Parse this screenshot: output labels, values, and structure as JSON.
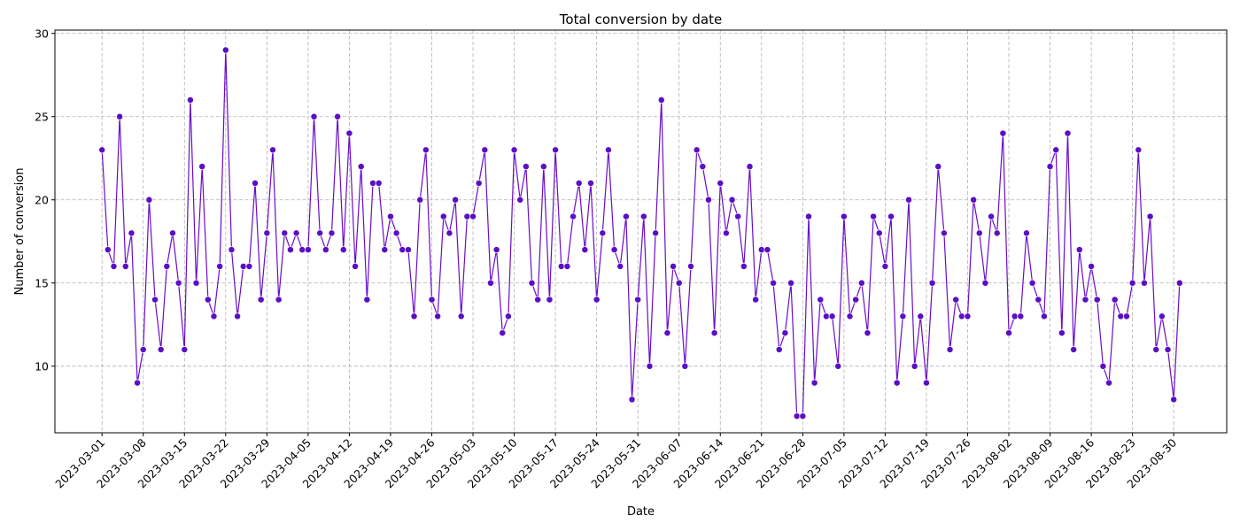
{
  "chart_data": {
    "type": "line",
    "title": "Total conversion by date",
    "xlabel": "Date",
    "ylabel": "Number of conversion",
    "ylim": [
      6,
      30.2
    ],
    "yticks": [
      10,
      15,
      20,
      25,
      30
    ],
    "xlim": [
      "2023-02-21",
      "2023-09-08"
    ],
    "xticks": [
      "2023-03-01",
      "2023-03-08",
      "2023-03-15",
      "2023-03-22",
      "2023-03-29",
      "2023-04-05",
      "2023-04-12",
      "2023-04-19",
      "2023-04-26",
      "2023-05-03",
      "2023-05-10",
      "2023-05-17",
      "2023-05-24",
      "2023-05-31",
      "2023-06-07",
      "2023-06-14",
      "2023-06-21",
      "2023-06-28",
      "2023-07-05",
      "2023-07-12",
      "2023-07-19",
      "2023-07-26",
      "2023-08-02",
      "2023-08-09",
      "2023-08-16",
      "2023-08-23",
      "2023-08-30"
    ],
    "grid": true,
    "line_color": "#6a0dca",
    "marker_color": "#5b0fc4",
    "series": [
      {
        "x_start": "2023-03-01",
        "x_step_days": 1,
        "values": [
          23,
          17,
          16,
          25,
          16,
          18,
          9,
          11,
          20,
          14,
          11,
          16,
          18,
          15,
          11,
          26,
          15,
          22,
          14,
          13,
          16,
          29,
          17,
          13,
          16,
          16,
          21,
          14,
          18,
          23,
          14,
          18,
          17,
          18,
          17,
          17,
          25,
          18,
          17,
          18,
          25,
          17,
          24,
          16,
          22,
          14,
          21,
          21,
          17,
          19,
          18,
          17,
          17,
          13,
          20,
          23,
          14,
          13,
          19,
          18,
          20,
          13,
          19,
          19,
          21,
          23,
          15,
          17,
          12,
          13,
          23,
          20,
          22,
          15,
          14,
          22,
          14,
          23,
          16,
          16,
          19,
          21,
          17,
          21,
          14,
          18,
          23,
          17,
          16,
          19,
          8,
          14,
          19,
          10,
          18,
          26,
          12,
          16,
          15,
          10,
          16,
          23,
          22,
          20,
          12,
          21,
          18,
          20,
          19,
          16,
          22,
          14,
          17,
          17,
          15,
          11,
          12,
          15,
          7,
          7,
          19,
          9,
          14,
          13,
          13,
          10,
          19,
          13,
          14,
          15,
          12,
          19,
          18,
          16,
          19,
          9,
          13,
          20,
          10,
          13,
          9,
          15,
          22,
          18,
          11,
          14,
          13,
          13,
          20,
          18,
          15,
          19,
          18,
          24,
          12,
          13,
          13,
          18,
          15,
          14,
          13,
          22,
          23,
          12,
          24,
          11,
          17,
          14,
          16,
          14,
          10,
          9,
          14,
          13,
          13,
          15,
          23,
          15,
          19,
          11,
          13,
          11,
          8,
          15
        ]
      }
    ]
  }
}
